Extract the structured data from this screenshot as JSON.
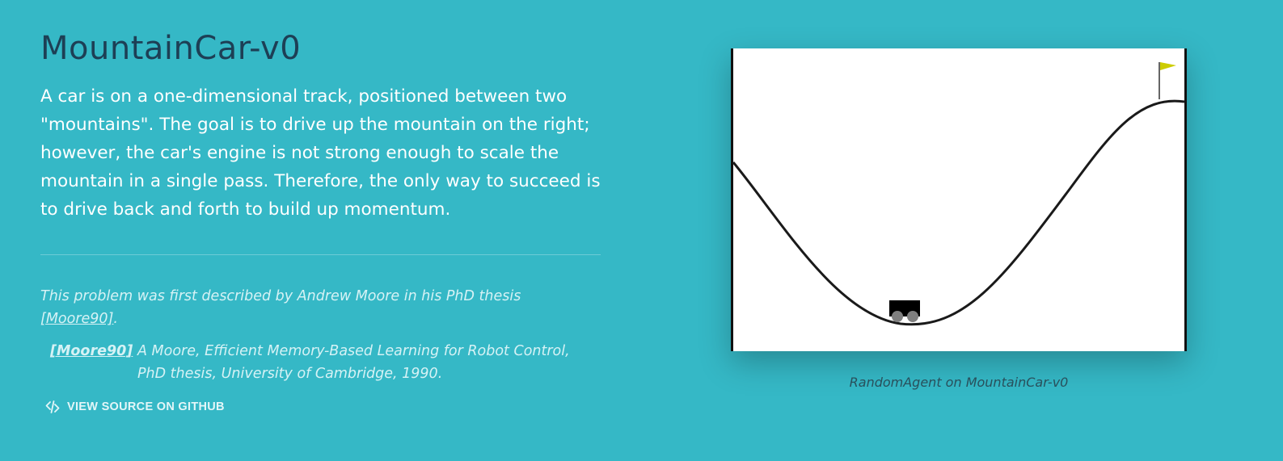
{
  "env": {
    "title": "MountainCar-v0",
    "description": "A car is on a one-dimensional track, positioned between two \"mountains\". The goal is to drive up the mountain on the right; however, the car's engine is not strong enough to scale the mountain in a single pass. Therefore, the only way to succeed is to drive back and forth to build up momentum.",
    "note_text": "This problem was first described by Andrew Moore in his PhD thesis",
    "note_link": "[Moore90]",
    "note_end": ".",
    "reference": {
      "label": "[Moore90]",
      "text": "A Moore, Efficient Memory-Based Learning for Robot Control, PhD thesis, University of Cambridge, 1990."
    },
    "github_label": "VIEW SOURCE ON GITHUB",
    "icon": "code-icon"
  },
  "preview": {
    "caption": "RandomAgent on MountainCar-v0",
    "flag_color": "#cccc00",
    "car_color": "#000000",
    "wheel_color": "#7f7f7f"
  }
}
